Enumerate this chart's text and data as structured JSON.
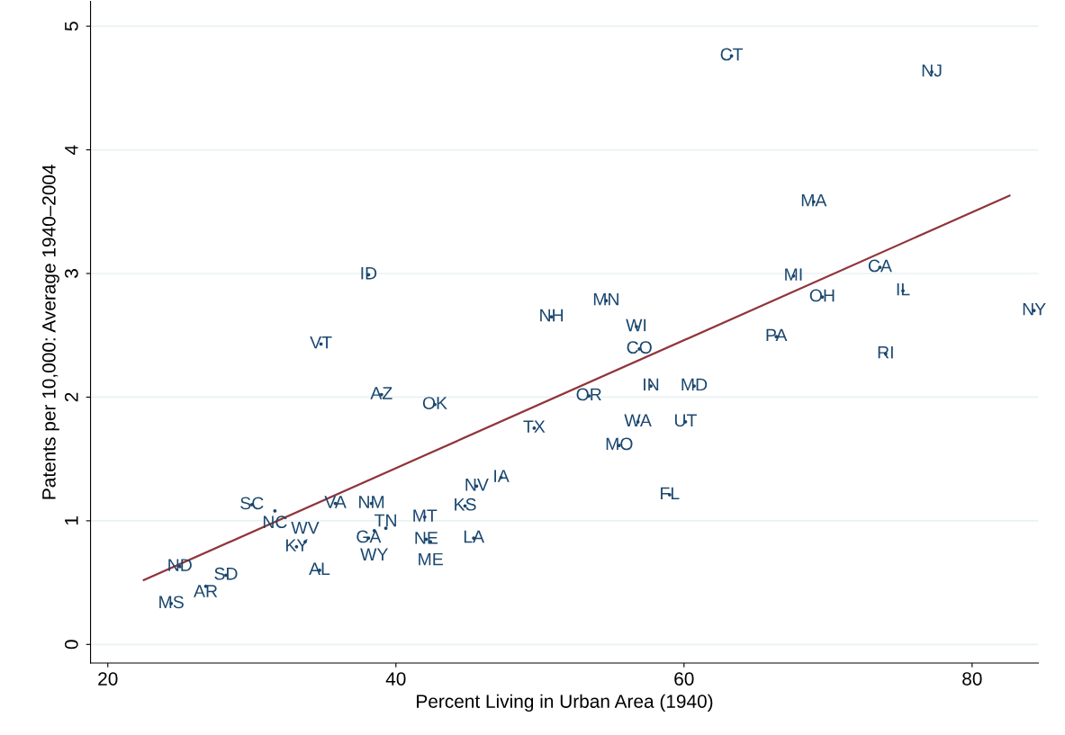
{
  "chart_data": {
    "type": "scatter",
    "xlabel": "Percent Living in Urban Area (1940)",
    "ylabel": "Patents per 10,000: Average 1940–2004",
    "xlim": [
      18.8,
      84.6
    ],
    "ylim": [
      -0.15,
      5.2
    ],
    "xticks": [
      20,
      40,
      60,
      80
    ],
    "yticks": [
      0,
      1,
      2,
      3,
      4,
      5
    ],
    "grid": "y",
    "marker": "none",
    "series": [
      {
        "color": "#1a476f",
        "x": [
          63.3,
          77.2,
          69.0,
          38.1,
          67.6,
          73.6,
          75.2,
          69.6,
          84.3,
          34.8,
          50.8,
          54.6,
          56.7,
          56.9,
          66.4,
          74.0,
          39.0,
          42.7,
          53.4,
          57.7,
          60.7,
          49.6,
          56.8,
          60.1,
          55.5,
          45.6,
          47.3,
          59.0,
          30.0,
          31.6,
          35.8,
          38.3,
          44.8,
          42.0,
          45.4,
          42.1,
          42.4,
          38.1,
          39.3,
          38.5,
          33.1,
          33.7,
          34.7,
          25.0,
          28.2,
          26.8,
          24.4
        ],
        "values": [
          4.76,
          4.63,
          3.58,
          2.99,
          2.98,
          3.05,
          2.86,
          2.81,
          2.7,
          2.43,
          2.65,
          2.78,
          2.57,
          2.39,
          2.49,
          2.35,
          2.02,
          1.94,
          2.01,
          2.09,
          2.09,
          1.75,
          1.8,
          1.8,
          1.61,
          1.28,
          1.35,
          1.21,
          1.13,
          1.08,
          1.14,
          1.14,
          1.12,
          1.03,
          0.86,
          0.85,
          0.83,
          0.86,
          0.94,
          0.92,
          0.79,
          0.83,
          0.6,
          0.63,
          0.56,
          0.47,
          0.33
        ],
        "value_labels": [
          "CT",
          "NJ",
          "MA",
          "ID",
          "MI",
          "CA",
          "IL",
          "OH",
          "NY",
          "VT",
          "NH",
          "MN",
          "WI",
          "CO",
          "PA",
          "RI",
          "AZ",
          "OK",
          "OR",
          "IN",
          "MD",
          "TX",
          "WA",
          "UT",
          "MO",
          "NV",
          "IA",
          "FL",
          "SC",
          "NC",
          "VA",
          "NM",
          "KS",
          "MT",
          "LA",
          "NE",
          "ME",
          "GA",
          "TN",
          "WY",
          "KY",
          "WV",
          "AL",
          "ND",
          "SD",
          "AR",
          "MS"
        ]
      },
      {
        "type": "line",
        "color": "#90353b",
        "x": [
          22.5,
          82.6
        ],
        "values": [
          0.52,
          3.63
        ]
      }
    ]
  }
}
